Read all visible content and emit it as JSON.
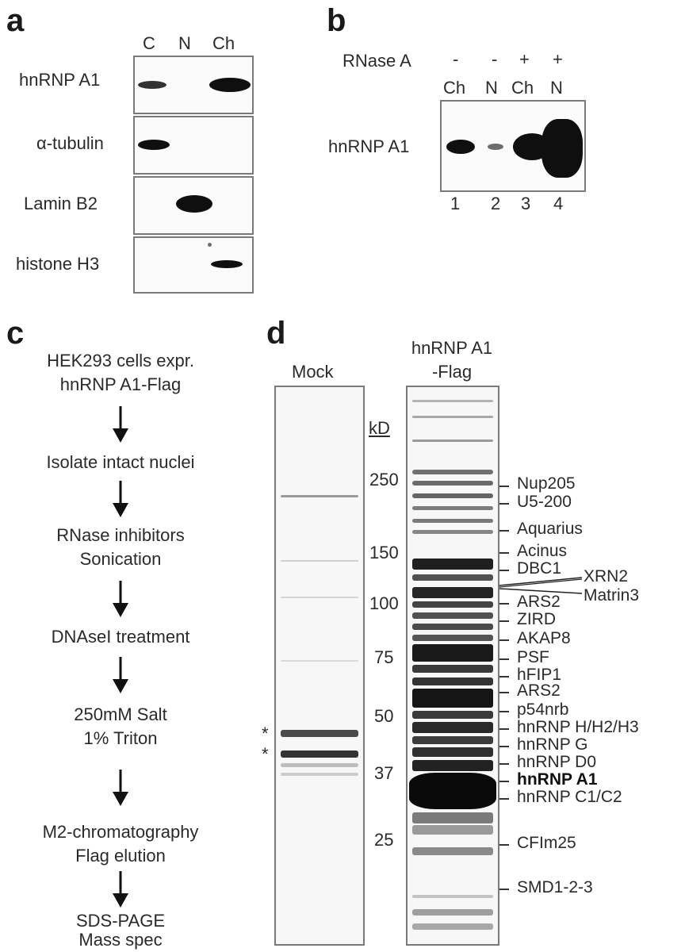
{
  "panel_a": {
    "label": "a",
    "lanes": [
      "C",
      "N",
      "Ch"
    ],
    "rows": [
      "hnRNP A1",
      "α-tubulin",
      "Lamin B2",
      "histone H3"
    ]
  },
  "panel_b": {
    "label": "b",
    "treatment_label": "RNase A",
    "treatment_signs": [
      "-",
      "-",
      "+",
      "+"
    ],
    "lanes": [
      "Ch",
      "N",
      "Ch",
      "N"
    ],
    "row_label": "hnRNP A1",
    "lane_numbers": [
      "1",
      "2",
      "3",
      "4"
    ]
  },
  "panel_c": {
    "label": "c",
    "steps": [
      [
        "HEK293 cells expr.",
        "hnRNP A1-Flag"
      ],
      [
        "Isolate intact nuclei"
      ],
      [
        "RNase inhibitors",
        "Sonication"
      ],
      [
        "DNAseI treatment"
      ],
      [
        "250mM Salt",
        "1% Triton"
      ],
      [
        "M2-chromatography",
        "Flag elution"
      ],
      [
        "SDS-PAGE",
        "Mass spec"
      ]
    ]
  },
  "panel_d": {
    "label": "d",
    "lane_mock": "Mock",
    "lane_flag_line1": "hnRNP A1",
    "lane_flag_line2": "-Flag",
    "kd_label": "kD",
    "markers": [
      "250",
      "150",
      "100",
      "75",
      "50",
      "37",
      "25"
    ],
    "asterisk": "*",
    "proteins": [
      "Nup205",
      "U5-200",
      "Aquarius",
      "Acinus",
      "DBC1",
      "XRN2",
      "ARS2",
      "Matrin3",
      "ZIRD",
      "AKAP8",
      "PSF",
      "hFIP1",
      "ARS2",
      "p54nrb",
      "hnRNP H/H2/H3",
      "hnRNP G",
      "hnRNP D0",
      "hnRNP A1",
      "hnRNP C1/C2",
      "CFIm25",
      "SMD1-2-3"
    ]
  }
}
